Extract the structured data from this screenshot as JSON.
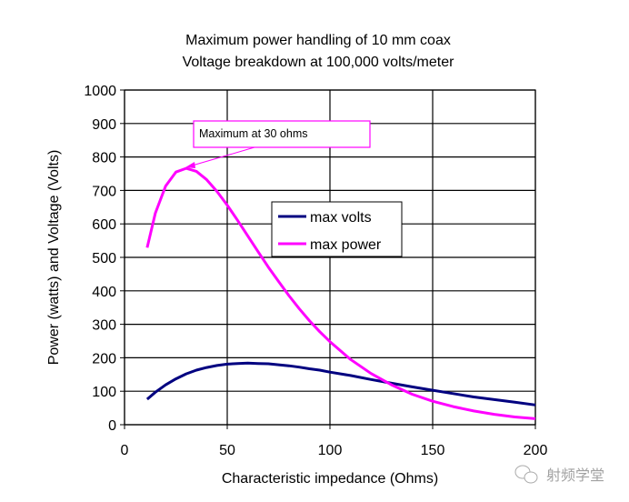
{
  "chart_data": {
    "type": "line",
    "title": [
      "Maximum power handling of 10 mm coax",
      "Voltage breakdown at 100,000 volts/meter"
    ],
    "xlabel": "Characteristic impedance (Ohms)",
    "ylabel": "Power (watts) and Voltage (Volts)",
    "xlim": [
      0,
      200
    ],
    "ylim": [
      0,
      1000
    ],
    "xticks": [
      "0",
      "50",
      "100",
      "150",
      "200"
    ],
    "yticks": [
      "0",
      "100",
      "200",
      "300",
      "400",
      "500",
      "600",
      "700",
      "800",
      "900",
      "1000"
    ],
    "grid": true,
    "legend_placement": "center",
    "x": [
      11,
      15,
      20,
      25,
      30,
      35,
      40,
      45,
      50,
      55,
      60,
      65,
      70,
      75,
      80,
      85,
      90,
      95,
      100,
      110,
      120,
      130,
      140,
      150,
      160,
      170,
      180,
      190,
      200
    ],
    "series": [
      {
        "name": "max volts",
        "color": "#000080",
        "values": [
          76,
          97,
          119,
          137,
          152,
          163,
          171,
          177,
          181,
          183,
          184,
          183,
          182,
          179,
          176,
          172,
          167,
          163,
          157,
          147,
          135,
          124,
          113,
          103,
          93,
          83,
          75,
          67,
          59
        ]
      },
      {
        "name": "max power",
        "color": "#FF00FF",
        "values": [
          529,
          632,
          713,
          755,
          766,
          757,
          732,
          697,
          656,
          611,
          564,
          517,
          471,
          428,
          386,
          347,
          311,
          278,
          248,
          195,
          153,
          119,
          91,
          70,
          54,
          41,
          31,
          23,
          18
        ]
      }
    ],
    "annotations": [
      {
        "text": "Maximum at 30 ohms",
        "x": 30,
        "y": 766
      }
    ]
  },
  "watermark": "射频学堂"
}
